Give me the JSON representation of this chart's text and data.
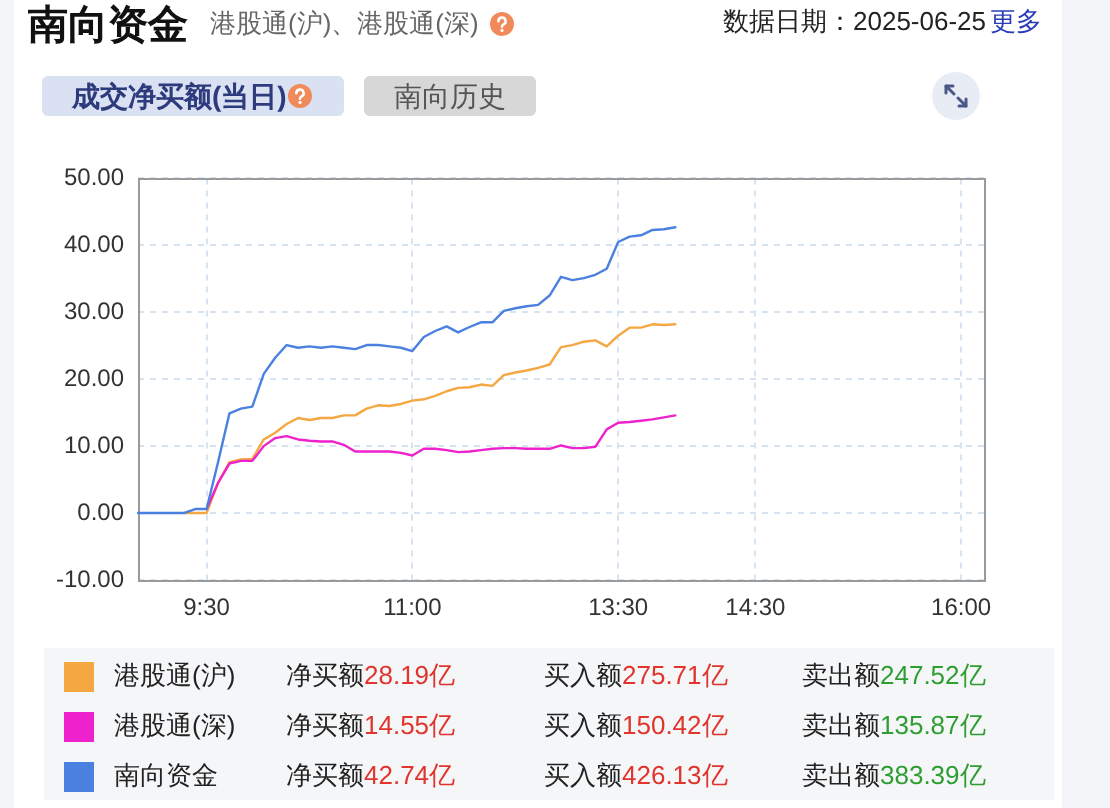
{
  "chart_data": {
    "type": "line",
    "title": "南向资金",
    "subtitle": "港股通(沪)、港股通(深)",
    "annotations": [
      "数据日期：2025-06-25",
      "更多",
      "成交净买额(当日)",
      "南向历史",
      "净买额28.19亿",
      "买入额275.71亿",
      "卖出额247.52亿",
      "净买额14.55亿",
      "买入额150.42亿",
      "卖出额135.87亿",
      "净买额42.74亿",
      "买入额426.13亿",
      "卖出额383.39亿"
    ],
    "categories": [
      null,
      null,
      null,
      null,
      null,
      null,
      "9:30",
      null,
      null,
      null,
      null,
      null,
      null,
      null,
      null,
      null,
      null,
      null,
      null,
      null,
      null,
      null,
      null,
      null,
      "11:00",
      null,
      null,
      null,
      null,
      null,
      null,
      null,
      null,
      null,
      null,
      null,
      null,
      null,
      null,
      null,
      null,
      null,
      "13:30",
      null,
      null,
      null,
      null,
      null,
      null,
      null,
      null,
      null,
      null,
      null,
      "14:30",
      null,
      null,
      null,
      null,
      null,
      null,
      null,
      null,
      null,
      null,
      null,
      null,
      null,
      null,
      null,
      null,
      null,
      "16:00",
      null,
      null
    ],
    "ylim": [
      -10,
      50
    ],
    "yticks": [
      {
        "value": -10,
        "label": "-10.00"
      },
      {
        "value": 0,
        "label": "0.00"
      },
      {
        "value": 10,
        "label": "10.00"
      },
      {
        "value": 20,
        "label": "20.00"
      },
      {
        "value": 30,
        "label": "30.00"
      },
      {
        "value": 40,
        "label": "40.00"
      },
      {
        "value": 50,
        "label": "50.00"
      }
    ],
    "grid": true,
    "legend": "bottom",
    "marker": "none",
    "line_style": "solid",
    "series": [
      {
        "name": "港股通(沪)",
        "color": "#f5a742",
        "values": [
          null,
          null,
          null,
          null,
          0,
          0,
          0,
          4.5,
          7.6,
          8.0,
          8.1,
          11.0,
          12.0,
          13.3,
          14.2,
          13.9,
          14.2,
          14.2,
          14.6,
          14.6,
          15.6,
          16.1,
          16.0,
          16.3,
          16.8,
          17.0,
          17.5,
          18.2,
          18.7,
          18.8,
          19.2,
          19.0,
          20.6,
          21.0,
          21.3,
          21.7,
          22.2,
          24.8,
          25.1,
          25.6,
          25.8,
          24.9,
          26.5,
          27.7,
          27.7,
          28.2,
          28.1,
          28.2,
          null,
          null,
          null,
          null,
          null,
          null,
          null,
          null,
          null,
          null,
          null,
          null,
          null,
          null,
          null,
          null,
          null,
          null,
          null,
          null,
          null,
          null,
          null,
          null,
          null,
          null,
          null
        ]
      },
      {
        "name": "港股通(深)",
        "color": "#ee22cc",
        "values": [
          null,
          null,
          null,
          null,
          null,
          null,
          0.6,
          4.5,
          7.4,
          7.8,
          7.8,
          10.0,
          11.2,
          11.5,
          11.0,
          10.8,
          10.7,
          10.7,
          10.2,
          9.2,
          9.2,
          9.2,
          9.2,
          9.0,
          8.6,
          9.6,
          9.6,
          9.4,
          9.1,
          9.2,
          9.4,
          9.6,
          9.7,
          9.7,
          9.6,
          9.6,
          9.6,
          10.1,
          9.7,
          9.7,
          9.9,
          12.5,
          13.5,
          13.6,
          13.8,
          14.0,
          14.3,
          14.6,
          null,
          null,
          null,
          null,
          null,
          null,
          null,
          null,
          null,
          null,
          null,
          null,
          null,
          null,
          null,
          null,
          null,
          null,
          null,
          null,
          null,
          null,
          null,
          null,
          null,
          null,
          null
        ]
      },
      {
        "name": "南向资金",
        "color": "#4a80e0",
        "values": [
          0,
          0,
          0,
          0,
          0,
          0.6,
          0.6,
          7.6,
          14.9,
          15.6,
          15.9,
          20.8,
          23.2,
          25.1,
          24.7,
          24.9,
          24.7,
          24.9,
          24.7,
          24.5,
          25.1,
          25.1,
          24.9,
          24.7,
          24.2,
          26.3,
          27.2,
          27.9,
          27.0,
          27.8,
          28.5,
          28.5,
          30.2,
          30.6,
          30.9,
          31.1,
          32.5,
          35.3,
          34.8,
          35.1,
          35.6,
          36.5,
          40.5,
          41.3,
          41.5,
          42.3,
          42.4,
          42.7,
          null,
          null,
          null,
          null,
          null,
          null,
          null,
          null,
          null,
          null,
          null,
          null,
          null,
          null,
          null,
          null,
          null,
          null,
          null,
          null,
          null,
          null,
          null,
          null,
          null,
          null,
          null
        ]
      }
    ]
  }
}
